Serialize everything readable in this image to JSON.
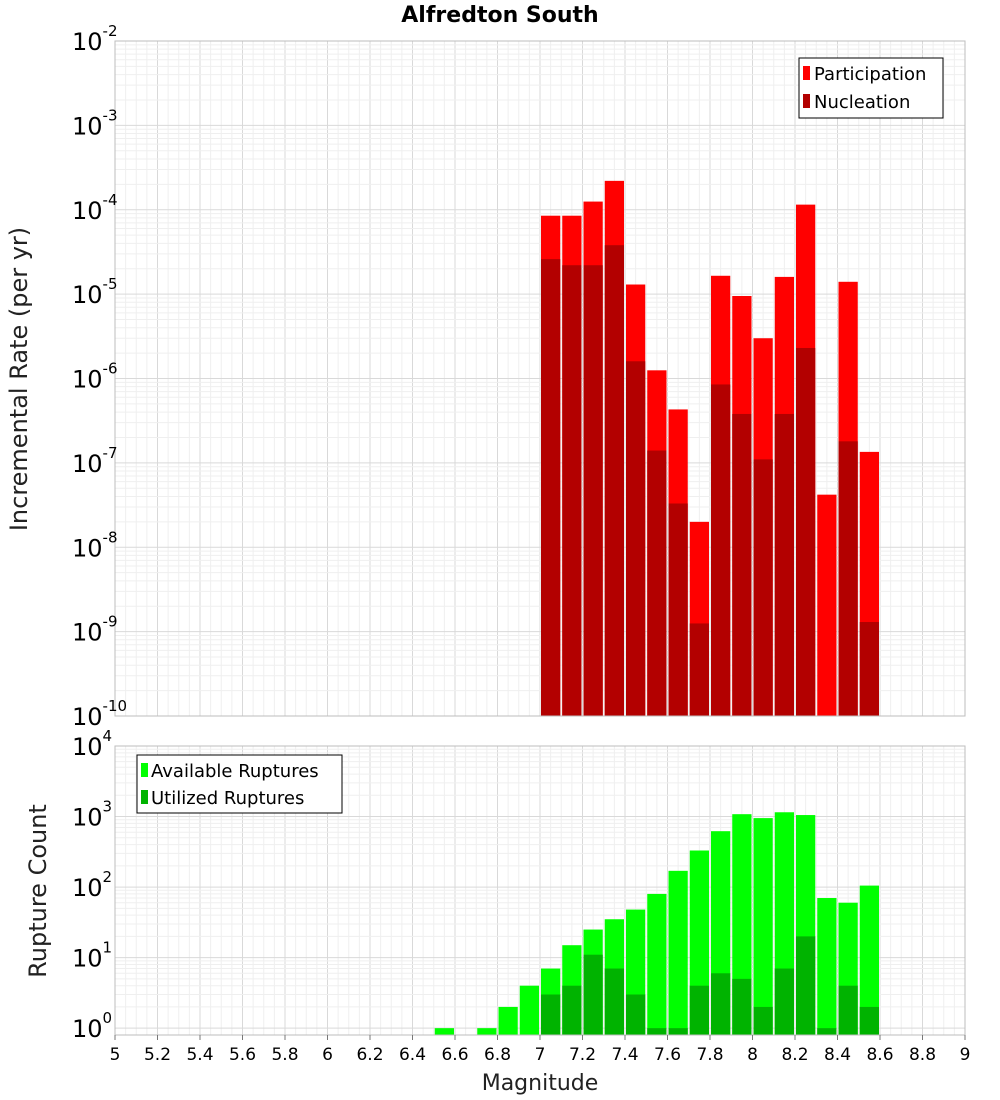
{
  "chart_data": [
    {
      "type": "bar",
      "title": "Alfredton South",
      "xlabel": "",
      "ylabel": "Incremental Rate (per yr)",
      "yscale": "log",
      "ylim": [
        1e-10,
        0.01
      ],
      "xlim": [
        5,
        9
      ],
      "grid": true,
      "legend_position": "top-right",
      "colors": {
        "Participation": "#ff0000",
        "Nucleation": "#b30000"
      },
      "y_tick_exponents": [
        "-10",
        "-9",
        "-8",
        "-7",
        "-6",
        "-5",
        "-4",
        "-3",
        "-2"
      ],
      "x": [
        7.05,
        7.15,
        7.25,
        7.35,
        7.45,
        7.55,
        7.65,
        7.75,
        7.85,
        7.95,
        8.05,
        8.15,
        8.25,
        8.35,
        8.45,
        8.55
      ],
      "series": [
        {
          "name": "Participation",
          "values": [
            8.5e-05,
            8.5e-05,
            0.000125,
            0.00022,
            1.3e-05,
            1.25e-06,
            4.3e-07,
            2e-08,
            1.65e-05,
            9.5e-06,
            3e-06,
            1.6e-05,
            0.000115,
            4.2e-08,
            1.4e-05,
            1.35e-07
          ]
        },
        {
          "name": "Nucleation",
          "values": [
            2.6e-05,
            2.2e-05,
            2.2e-05,
            3.8e-05,
            1.6e-06,
            1.4e-07,
            3.3e-08,
            1.25e-09,
            8.5e-07,
            3.8e-07,
            1.1e-07,
            3.8e-07,
            2.3e-06,
            7e-11,
            1.8e-07,
            1.3e-09
          ]
        }
      ]
    },
    {
      "type": "bar",
      "title": "",
      "xlabel": "Magnitude",
      "ylabel": "Rupture Count",
      "yscale": "log",
      "ylim": [
        0.8,
        10000
      ],
      "xlim": [
        5,
        9
      ],
      "grid": true,
      "legend_position": "top-left",
      "colors": {
        "Available Ruptures": "#00ff00",
        "Utilized Ruptures": "#00b300"
      },
      "y_tick_exponents": [
        "0",
        "1",
        "2",
        "3",
        "4"
      ],
      "x_tick_labels": [
        "5",
        "5.2",
        "5.4",
        "5.6",
        "5.8",
        "6",
        "6.2",
        "6.4",
        "6.6",
        "6.8",
        "7",
        "7.2",
        "7.4",
        "7.6",
        "7.8",
        "8",
        "8.2",
        "8.4",
        "8.6",
        "8.8",
        "9"
      ],
      "x": [
        6.55,
        6.75,
        6.85,
        6.95,
        7.05,
        7.15,
        7.25,
        7.35,
        7.45,
        7.55,
        7.65,
        7.75,
        7.85,
        7.95,
        8.05,
        8.15,
        8.25,
        8.35,
        8.45,
        8.55
      ],
      "series": [
        {
          "name": "Available Ruptures",
          "values": [
            1,
            1,
            2,
            4,
            7,
            15,
            25,
            35,
            48,
            80,
            170,
            330,
            620,
            1080,
            950,
            1150,
            1050,
            70,
            60,
            105
          ]
        },
        {
          "name": "Utilized Ruptures",
          "values": [
            0,
            0,
            0,
            0,
            3,
            4,
            11,
            7,
            3,
            1,
            1,
            4,
            6,
            5,
            2,
            7,
            20,
            1,
            4,
            2
          ]
        }
      ]
    }
  ]
}
